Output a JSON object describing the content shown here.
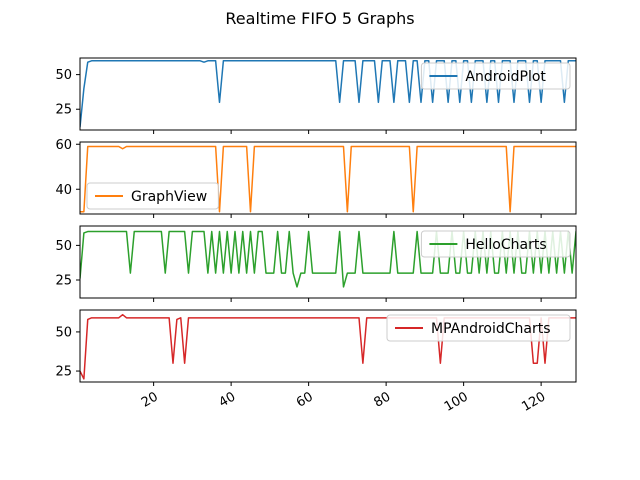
{
  "chart_data": {
    "title": "Realtime FIFO 5 Graphs",
    "type": "line",
    "shared_x": {
      "xlim": [
        1,
        129
      ],
      "ticks": [
        20,
        40,
        60,
        80,
        100,
        120
      ]
    },
    "panels": [
      {
        "name": "AndroidPlot",
        "color": "#1f77b4",
        "ylim": [
          10,
          62
        ],
        "yticks": [
          25,
          50
        ],
        "legend": "top-right",
        "values": [
          12,
          40,
          59,
          60,
          60,
          60,
          60,
          60,
          60,
          60,
          60,
          60,
          60,
          60,
          60,
          60,
          60,
          60,
          60,
          60,
          60,
          60,
          60,
          60,
          60,
          60,
          60,
          60,
          60,
          60,
          60,
          60,
          59,
          60,
          60,
          60,
          30,
          60,
          60,
          60,
          60,
          60,
          60,
          60,
          60,
          60,
          60,
          60,
          60,
          60,
          60,
          60,
          60,
          60,
          60,
          60,
          60,
          60,
          60,
          60,
          60,
          60,
          60,
          60,
          60,
          60,
          60,
          30,
          60,
          60,
          60,
          60,
          30,
          60,
          60,
          60,
          60,
          30,
          60,
          60,
          60,
          30,
          60,
          60,
          60,
          30,
          60,
          60,
          30,
          60,
          60,
          30,
          60,
          60,
          60,
          30,
          60,
          60,
          30,
          60,
          60,
          30,
          60,
          60,
          60,
          30,
          60,
          60,
          30,
          60,
          60,
          60,
          30,
          60,
          60,
          60,
          30,
          60,
          60,
          30,
          60,
          60,
          60,
          60,
          60,
          30,
          60,
          60,
          60
        ]
      },
      {
        "name": "GraphView",
        "color": "#ff7f0e",
        "ylim": [
          29,
          61
        ],
        "yticks": [
          40,
          60
        ],
        "legend": "lower-left",
        "values": [
          30,
          30,
          59,
          59,
          59,
          59,
          59,
          59,
          59,
          59,
          59,
          58,
          59,
          59,
          59,
          59,
          59,
          59,
          59,
          59,
          59,
          59,
          59,
          59,
          59,
          59,
          59,
          59,
          59,
          59,
          59,
          59,
          59,
          59,
          59,
          59,
          30,
          59,
          59,
          59,
          59,
          59,
          59,
          59,
          30,
          59,
          59,
          59,
          59,
          59,
          59,
          59,
          59,
          59,
          59,
          59,
          59,
          59,
          59,
          59,
          59,
          59,
          59,
          59,
          59,
          59,
          59,
          59,
          59,
          30,
          59,
          59,
          59,
          59,
          59,
          59,
          59,
          59,
          59,
          59,
          59,
          59,
          59,
          59,
          59,
          59,
          30,
          59,
          59,
          59,
          59,
          59,
          59,
          59,
          59,
          59,
          59,
          59,
          59,
          59,
          59,
          59,
          59,
          59,
          59,
          59,
          59,
          59,
          59,
          59,
          59,
          30,
          59,
          59,
          59,
          59,
          59,
          59,
          59,
          59,
          59,
          59,
          59,
          59,
          59,
          59,
          59,
          59,
          59
        ]
      },
      {
        "name": "HelloCharts",
        "color": "#2ca02c",
        "ylim": [
          12,
          64
        ],
        "yticks": [
          25,
          50
        ],
        "legend": "top-right",
        "values": [
          26,
          59,
          60,
          60,
          60,
          60,
          60,
          60,
          60,
          60,
          60,
          60,
          60,
          30,
          60,
          60,
          60,
          60,
          60,
          60,
          60,
          60,
          30,
          60,
          60,
          60,
          60,
          60,
          30,
          60,
          60,
          60,
          60,
          30,
          60,
          30,
          60,
          30,
          60,
          30,
          60,
          30,
          60,
          30,
          60,
          30,
          60,
          60,
          30,
          30,
          30,
          60,
          30,
          30,
          60,
          30,
          20,
          30,
          30,
          60,
          30,
          30,
          30,
          30,
          30,
          30,
          30,
          60,
          20,
          30,
          30,
          30,
          60,
          30,
          30,
          30,
          30,
          30,
          30,
          30,
          30,
          60,
          30,
          30,
          30,
          30,
          30,
          60,
          30,
          30,
          30,
          30,
          60,
          30,
          30,
          30,
          60,
          30,
          30,
          60,
          30,
          30,
          60,
          30,
          60,
          30,
          60,
          30,
          30,
          60,
          30,
          60,
          30,
          60,
          30,
          30,
          60,
          30,
          60,
          30,
          60,
          30,
          60,
          30,
          60,
          30,
          60,
          30,
          60,
          30
        ]
      },
      {
        "name": "MPAndroidCharts",
        "color": "#d62728",
        "ylim": [
          18,
          64
        ],
        "yticks": [
          25,
          50
        ],
        "legend": "top-right",
        "values": [
          25,
          20,
          58,
          59,
          59,
          59,
          59,
          59,
          59,
          59,
          59,
          61,
          59,
          59,
          59,
          59,
          59,
          59,
          59,
          59,
          59,
          59,
          59,
          59,
          30,
          58,
          59,
          30,
          59,
          59,
          59,
          59,
          59,
          59,
          59,
          59,
          59,
          59,
          59,
          59,
          59,
          59,
          59,
          59,
          59,
          59,
          59,
          59,
          59,
          59,
          59,
          59,
          59,
          59,
          59,
          59,
          59,
          59,
          59,
          59,
          59,
          59,
          59,
          59,
          59,
          59,
          59,
          59,
          59,
          59,
          59,
          59,
          59,
          30,
          59,
          59,
          59,
          59,
          59,
          59,
          59,
          59,
          59,
          59,
          59,
          59,
          59,
          59,
          59,
          59,
          59,
          59,
          59,
          30,
          59,
          59,
          59,
          59,
          59,
          59,
          59,
          59,
          59,
          59,
          59,
          59,
          59,
          59,
          59,
          59,
          59,
          59,
          59,
          59,
          59,
          59,
          59,
          30,
          30,
          59,
          30,
          59,
          59,
          59,
          59,
          59,
          59,
          59,
          59,
          59
        ]
      }
    ]
  }
}
